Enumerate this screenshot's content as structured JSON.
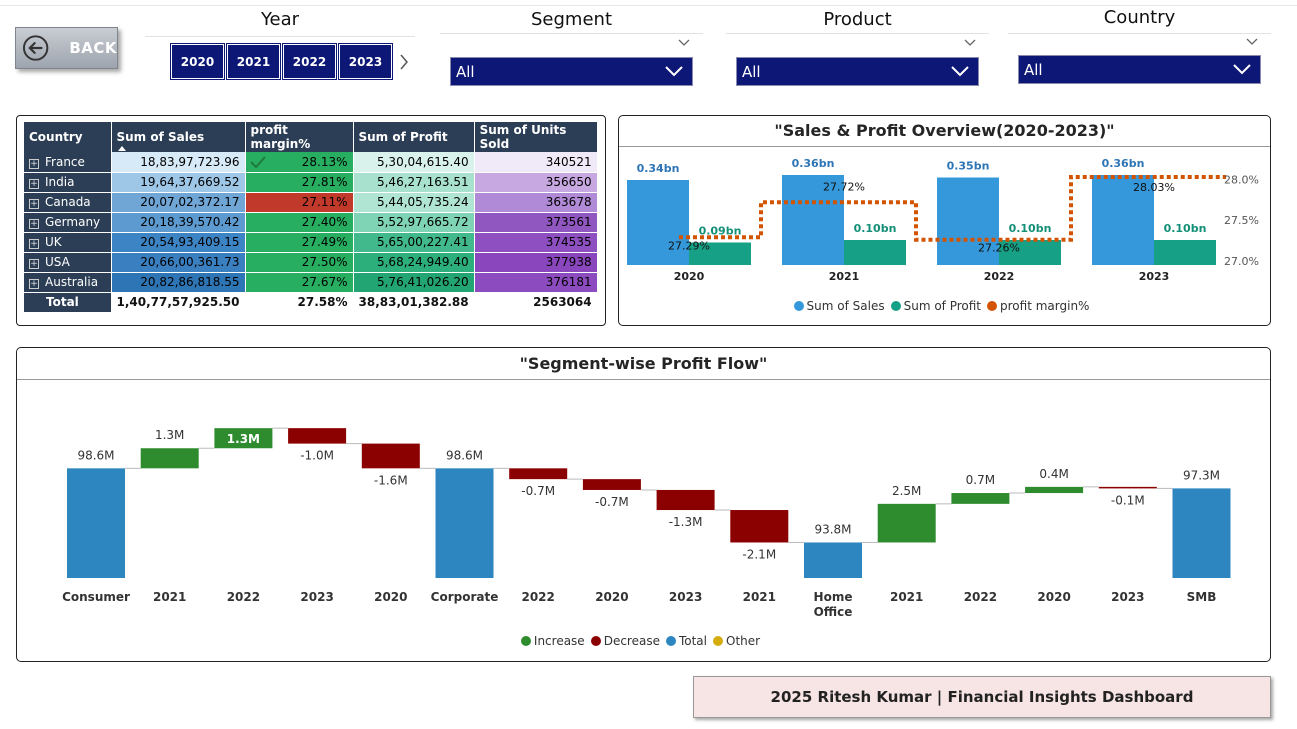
{
  "back_button": {
    "label": "BACK"
  },
  "slicers": {
    "year": {
      "title": "Year",
      "options": [
        "2020",
        "2021",
        "2022",
        "2023"
      ]
    },
    "segment": {
      "title": "Segment",
      "value": "All"
    },
    "product": {
      "title": "Product",
      "value": "All"
    },
    "country": {
      "title": "Country",
      "value": "All"
    }
  },
  "table": {
    "headers": [
      "Country",
      "Sum of Sales",
      "profit margin%",
      "Sum of Profit",
      "Sum of Units Sold"
    ],
    "rows": [
      {
        "country": "France",
        "sales": "18,83,97,723.96",
        "margin": "28.13%",
        "profit": "5,30,04,615.40",
        "units": "340521",
        "sales_bg": "#d6eaf8",
        "margin_bg": "#27ae60",
        "profit_bg": "#d9f2ec",
        "units_bg": "#f0eaf8"
      },
      {
        "country": "India",
        "sales": "19,64,37,669.52",
        "margin": "27.81%",
        "profit": "5,46,27,163.51",
        "units": "356650",
        "sales_bg": "#9ec6e6",
        "margin_bg": "#27ae60",
        "profit_bg": "#a8e2cf",
        "units_bg": "#c7a8e0"
      },
      {
        "country": "Canada",
        "sales": "20,07,02,372.17",
        "margin": "27.11%",
        "profit": "5,44,05,735.24",
        "units": "363678",
        "sales_bg": "#6fa6d6",
        "margin_bg": "#c0392b",
        "profit_bg": "#b0e4d3",
        "units_bg": "#b08ad6"
      },
      {
        "country": "Germany",
        "sales": "20,18,39,570.42",
        "margin": "27.40%",
        "profit": "5,52,97,665.72",
        "units": "373561",
        "sales_bg": "#5d9ad0",
        "margin_bg": "#27ae60",
        "profit_bg": "#7fd4b6",
        "units_bg": "#9057c0"
      },
      {
        "country": "UK",
        "sales": "20,54,93,409.15",
        "margin": "27.49%",
        "profit": "5,65,00,227.41",
        "units": "374535",
        "sales_bg": "#3d84c4",
        "margin_bg": "#27ae60",
        "profit_bg": "#41b98c",
        "units_bg": "#8e4fc0"
      },
      {
        "country": "USA",
        "sales": "20,66,00,361.73",
        "margin": "27.50%",
        "profit": "5,68,24,949.40",
        "units": "377938",
        "sales_bg": "#3a7fc0",
        "margin_bg": "#27ae60",
        "profit_bg": "#2daf7c",
        "units_bg": "#8a47bd"
      },
      {
        "country": "Australia",
        "sales": "20,82,86,818.55",
        "margin": "27.67%",
        "profit": "5,76,41,026.20",
        "units": "376181",
        "sales_bg": "#2e75b6",
        "margin_bg": "#27ae60",
        "profit_bg": "#22a572",
        "units_bg": "#8c4cbf"
      }
    ],
    "total": {
      "country": "Total",
      "sales": "1,40,77,57,925.50",
      "margin": "27.58%",
      "profit": "38,83,01,382.88",
      "units": "2563064"
    }
  },
  "overview_chart": {
    "title": "\"Sales & Profit Overview(2020-2023)\"",
    "legend": [
      {
        "label": "Sum of Sales",
        "color": "#3498db"
      },
      {
        "label": "Sum of Profit",
        "color": "#16a085"
      },
      {
        "label": "profit margin%",
        "color": "#d35400"
      }
    ]
  },
  "waterfall_chart": {
    "title": "\"Segment-wise Profit Flow\"",
    "legend": [
      {
        "label": "Increase",
        "color": "#2e8b2e"
      },
      {
        "label": "Decrease",
        "color": "#8b0000"
      },
      {
        "label": "Total",
        "color": "#2e86c1"
      },
      {
        "label": "Other",
        "color": "#d4ac0d"
      }
    ]
  },
  "chart_data": [
    {
      "type": "bar",
      "title": "\"Sales & Profit Overview(2020-2023)\"",
      "categories": [
        "2020",
        "2021",
        "2022",
        "2023"
      ],
      "series": [
        {
          "name": "Sum of Sales",
          "values": [
            0.34,
            0.36,
            0.35,
            0.36
          ],
          "labels": [
            "0.34bn",
            "0.36bn",
            "0.35bn",
            "0.36bn"
          ],
          "color": "#3498db"
        },
        {
          "name": "Sum of Profit",
          "values": [
            0.09,
            0.1,
            0.1,
            0.1
          ],
          "labels": [
            "0.09bn",
            "0.10bn",
            "0.10bn",
            "0.10bn"
          ],
          "color": "#16a085"
        },
        {
          "name": "profit margin%",
          "type": "line",
          "values": [
            27.29,
            27.72,
            27.26,
            28.03
          ],
          "labels": [
            "27.29%",
            "27.72%",
            "27.26%",
            "28.03%"
          ],
          "color": "#d35400"
        }
      ],
      "y2_ticks": [
        "28.0%",
        "27.5%",
        "27.0%"
      ],
      "y2lim": [
        26.95,
        28.3
      ],
      "legend_position": "bottom"
    },
    {
      "type": "waterfall",
      "title": "\"Segment-wise Profit Flow\"",
      "categories": [
        "Consumer",
        "2021",
        "2022",
        "2023",
        "2020",
        "Corporate",
        "2022",
        "2020",
        "2023",
        "2021",
        "Home Office",
        "2021",
        "2022",
        "2020",
        "2023",
        "SMB"
      ],
      "kinds": [
        "total",
        "increase",
        "increase",
        "decrease",
        "decrease",
        "total",
        "decrease",
        "decrease",
        "decrease",
        "decrease",
        "total",
        "increase",
        "increase",
        "increase",
        "decrease",
        "total"
      ],
      "values": [
        98.6,
        1.3,
        1.3,
        -1.0,
        -1.6,
        98.6,
        -0.7,
        -0.7,
        -1.3,
        -2.1,
        93.8,
        2.5,
        0.7,
        0.4,
        -0.1,
        97.3
      ],
      "labels": [
        "98.6M",
        "1.3M",
        "1.3M",
        "-1.0M",
        "-1.6M",
        "98.6M",
        "-0.7M",
        "-0.7M",
        "-1.3M",
        "-2.1M",
        "93.8M",
        "2.5M",
        "0.7M",
        "0.4M",
        "-0.1M",
        "97.3M"
      ],
      "unit": "M",
      "ylim": [
        91.5,
        103.8
      ],
      "legend_position": "bottom"
    }
  ],
  "footer": {
    "text": "2025 Ritesh Kumar | Financial Insights Dashboard"
  }
}
